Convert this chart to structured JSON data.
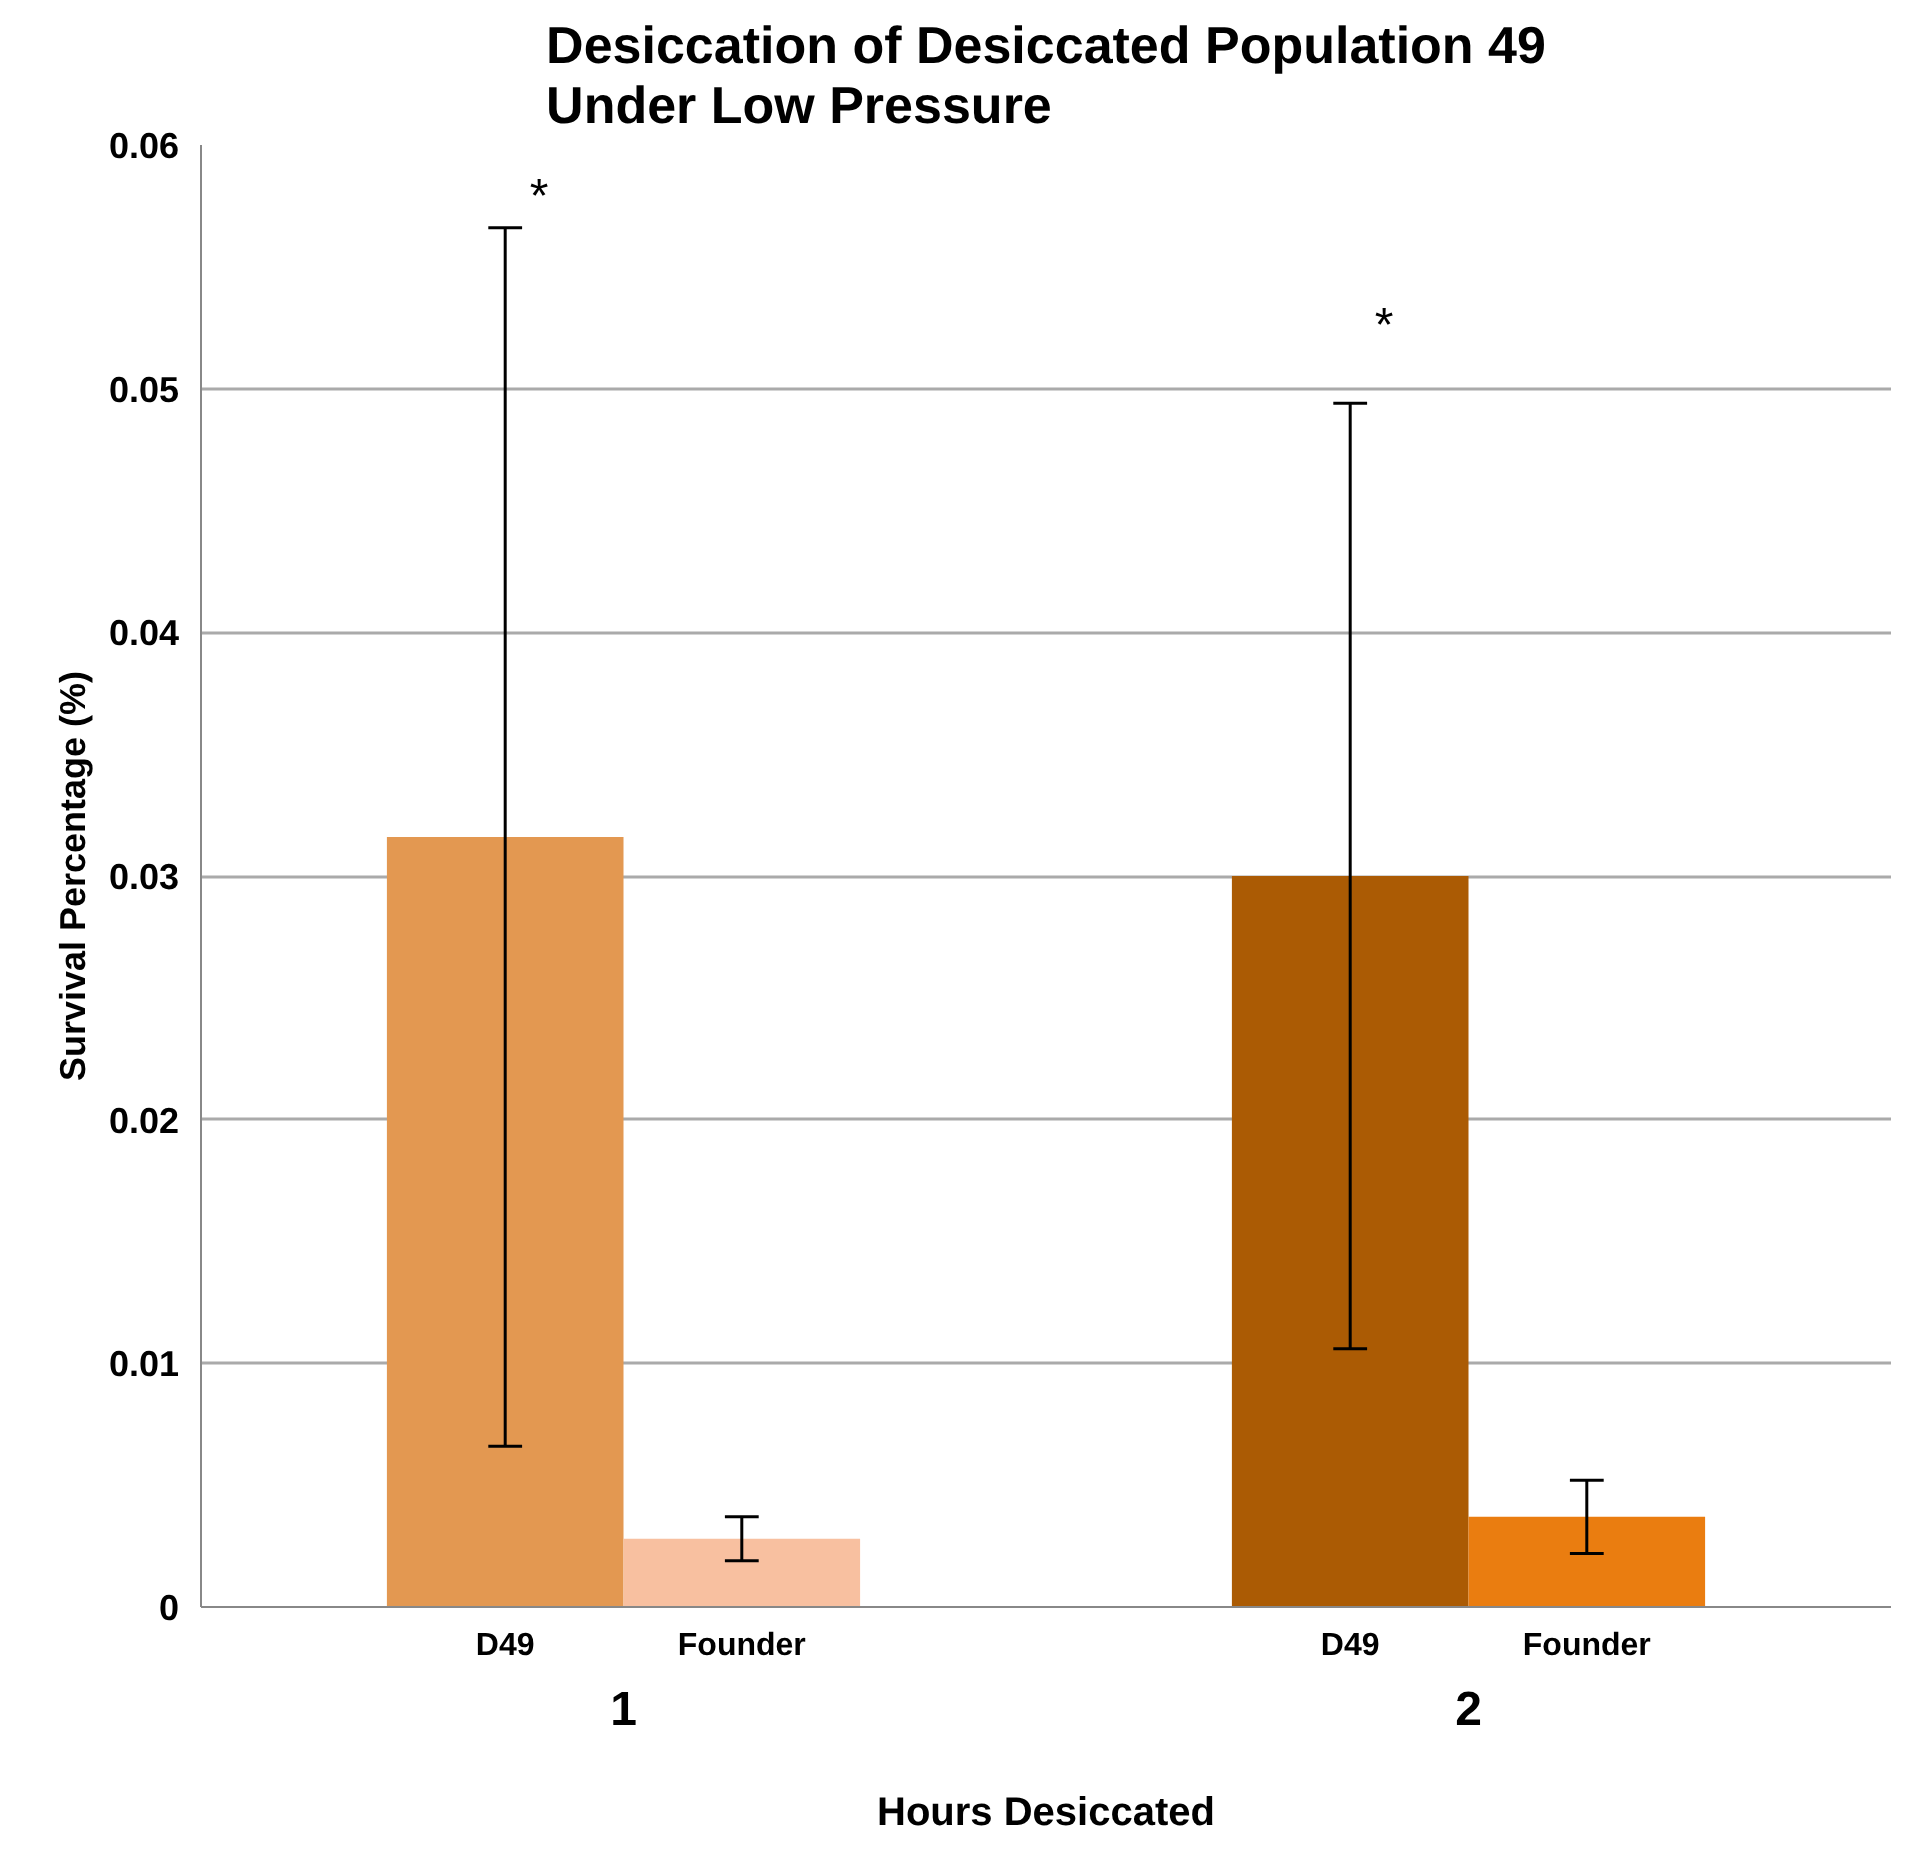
{
  "chart_data": {
    "type": "bar",
    "title": "Desiccation of Desiccated Population 49\nUnder Low Pressure",
    "xlabel": "Hours Desiccated",
    "ylabel": "Survival Percentage (%)",
    "categories": [
      "1",
      "2"
    ],
    "series": [
      {
        "name": "D49",
        "colors": [
          "#e39851",
          "#ab5b04"
        ],
        "values": [
          0.0316,
          0.03
        ],
        "errors": [
          0.025,
          0.0194
        ]
      },
      {
        "name": "Founder",
        "colors": [
          "#f8c0a0",
          "#ea7d10"
        ],
        "values": [
          0.0028,
          0.0037
        ],
        "errors": [
          0.0009,
          0.0015
        ]
      }
    ],
    "ylim": [
      0,
      0.06
    ],
    "yticks": [
      {
        "value": 0,
        "label": "0"
      },
      0.01,
      0.02,
      0.03,
      0.04,
      0.05,
      0.06
    ],
    "grid": "y",
    "annotations": [
      "*",
      "*"
    ]
  }
}
